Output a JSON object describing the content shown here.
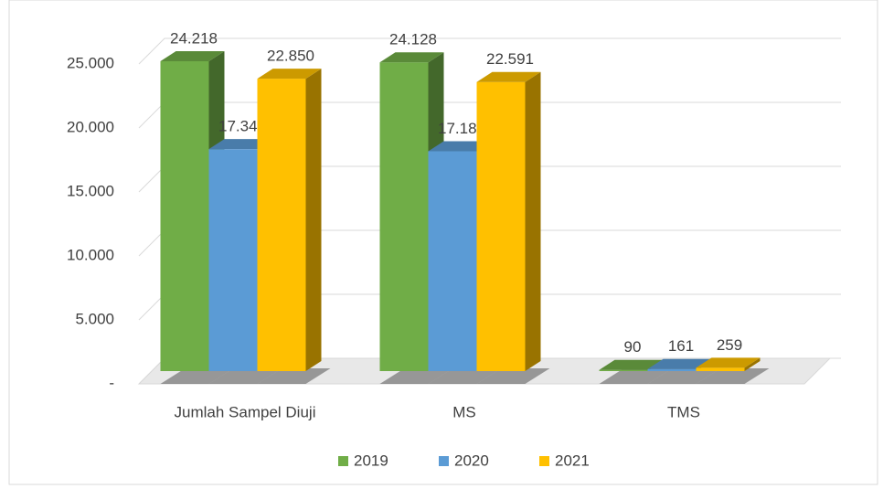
{
  "chart_data": {
    "type": "bar3d",
    "categories": [
      "Jumlah Sampel Diuji",
      "MS",
      "TMS"
    ],
    "series": [
      {
        "name": "2019",
        "color": "#70ad47",
        "values": [
          24218,
          24128,
          90
        ],
        "value_labels": [
          "24.218",
          "24.128",
          "90"
        ]
      },
      {
        "name": "2020",
        "color": "#5b9bd5",
        "values": [
          17344,
          17183,
          161
        ],
        "value_labels": [
          "17.344",
          "17.183",
          "161"
        ]
      },
      {
        "name": "2021",
        "color": "#ffc000",
        "values": [
          22850,
          22591,
          259
        ],
        "value_labels": [
          "22.850",
          "22.591",
          "259"
        ]
      }
    ],
    "ylim": [
      0,
      25000
    ],
    "yticks": [
      {
        "value": 0,
        "label": "-"
      },
      {
        "value": 5000,
        "label": "5.000"
      },
      {
        "value": 10000,
        "label": "10.000"
      },
      {
        "value": 15000,
        "label": "15.000"
      },
      {
        "value": 20000,
        "label": "20.000"
      },
      {
        "value": 25000,
        "label": "25.000"
      }
    ],
    "grid": true,
    "legend": "bottom"
  }
}
